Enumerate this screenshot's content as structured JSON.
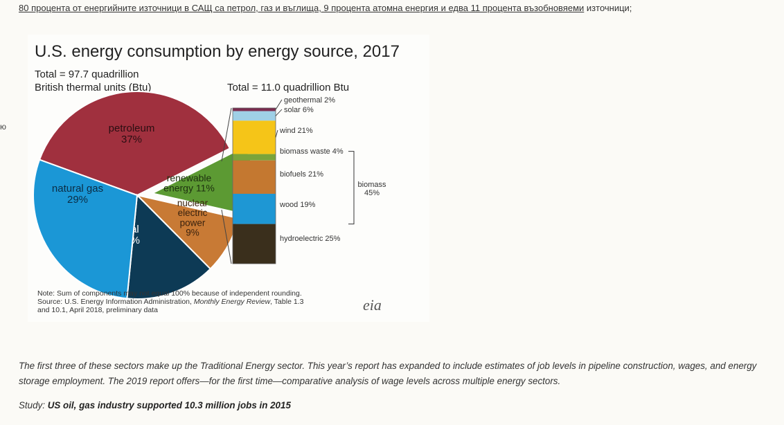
{
  "intro": {
    "link_text": "80 процента от енергийните източници в САЩ са петрол, газ и въглища, 9 процента атомна енергия и едва 11 процента възобновяеми",
    "tail_text": " източници;"
  },
  "side_fragment": "ю",
  "chart_data": {
    "type": "pie",
    "title": "U.S. energy consumption by energy source, 2017",
    "total_left_line1": "Total = 97.7 quadrillion",
    "total_left_line2": "British thermal units (Btu)",
    "total_right": "Total = 11.0 quadrillion Btu",
    "slices": [
      {
        "name": "petroleum",
        "value": 37,
        "label": "37%",
        "color": "#a0303e"
      },
      {
        "name": "renewable energy",
        "value": 11,
        "label": "11%",
        "color": "#5c9a33"
      },
      {
        "name": "nuclear electric power",
        "value": 9,
        "label": "9%",
        "color": "#c87a35"
      },
      {
        "name": "coal",
        "value": 14,
        "label": "14%",
        "color": "#0d3a55"
      },
      {
        "name": "natural gas",
        "value": 29,
        "label": "29%",
        "color": "#1b97d6"
      }
    ],
    "renewables": [
      {
        "name": "geothermal",
        "value": 2,
        "label": "geothermal 2%",
        "color": "#7a2d4f"
      },
      {
        "name": "solar",
        "value": 6,
        "label": "solar 6%",
        "color": "#9fd0e6"
      },
      {
        "name": "wind",
        "value": 21,
        "label": "wind 21%",
        "color": "#f5c518"
      },
      {
        "name": "biomass waste",
        "value": 4,
        "label": "biomass waste 4%",
        "color": "#7aa43a"
      },
      {
        "name": "biofuels",
        "value": 21,
        "label": "biofuels 21%",
        "color": "#c47830"
      },
      {
        "name": "wood",
        "value": 19,
        "label": "wood 19%",
        "color": "#1e97d4"
      },
      {
        "name": "hydroelectric",
        "value": 25,
        "label": "hydroelectric 25%",
        "color": "#3a2f1c"
      }
    ],
    "biomass_label": "biomass",
    "biomass_value": "45%",
    "note_line1": "Note: Sum of components may not equal 100% because of independent rounding.",
    "note_line2_prefix": "Source: U.S. Energy Information Administration, ",
    "note_line2_italic": "Monthly Energy Review",
    "note_line2_suffix": ", Table 1.3",
    "note_line3": "and 10.1, April 2018, preliminary data",
    "logo_text": "eia"
  },
  "body": {
    "paragraph": "The first three of these sectors make up the Traditional Energy sector. This year’s report has expanded to include estimates of job levels in pipeline construction, wages, and energy storage employment. The 2019 report offers—for the first time—comparative analysis of wage levels across multiple energy sectors.",
    "study_prefix": "Study: ",
    "study_link": "US oil, gas industry supported 10.3 million jobs in 2015"
  }
}
